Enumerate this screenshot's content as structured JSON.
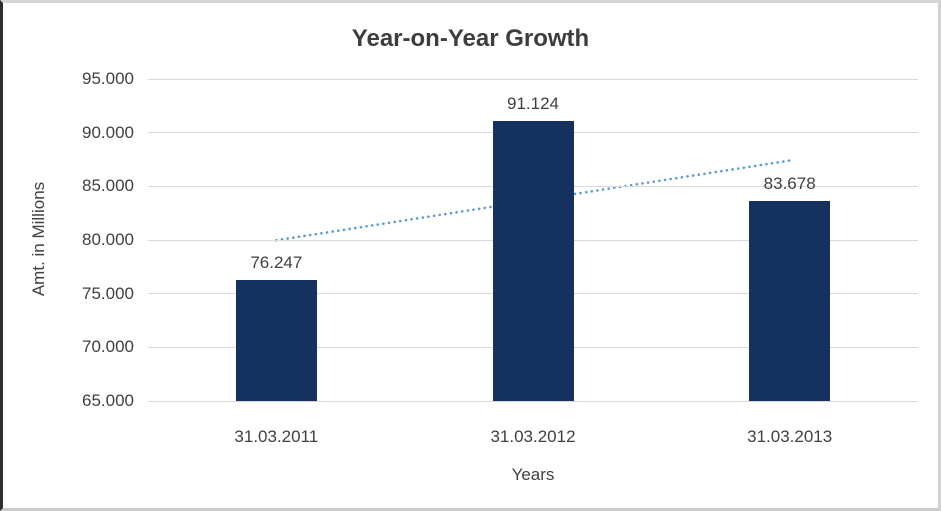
{
  "chart_data": {
    "type": "bar",
    "title": "Year-on-Year Growth",
    "xlabel": "Years",
    "ylabel": "Amt. in Millions",
    "categories": [
      "31.03.2011",
      "31.03.2012",
      "31.03.2013"
    ],
    "values": [
      76247,
      91124,
      83678
    ],
    "value_labels": [
      "76.247",
      "91.124",
      "83.678"
    ],
    "ylim": [
      65000,
      95000
    ],
    "ytick_step": 5000,
    "ytick_labels": [
      "65.000",
      "70.000",
      "75.000",
      "80.000",
      "85.000",
      "90.000",
      "95.000"
    ],
    "grid": true,
    "legend": "none",
    "bar_color": "#14315f",
    "text_color": "#404040",
    "gridline_color": "#d9d9d9",
    "trendline": {
      "type": "linear",
      "style": "dotted",
      "color": "#5b9bd5",
      "start_value": 79970,
      "end_value": 87400
    }
  }
}
